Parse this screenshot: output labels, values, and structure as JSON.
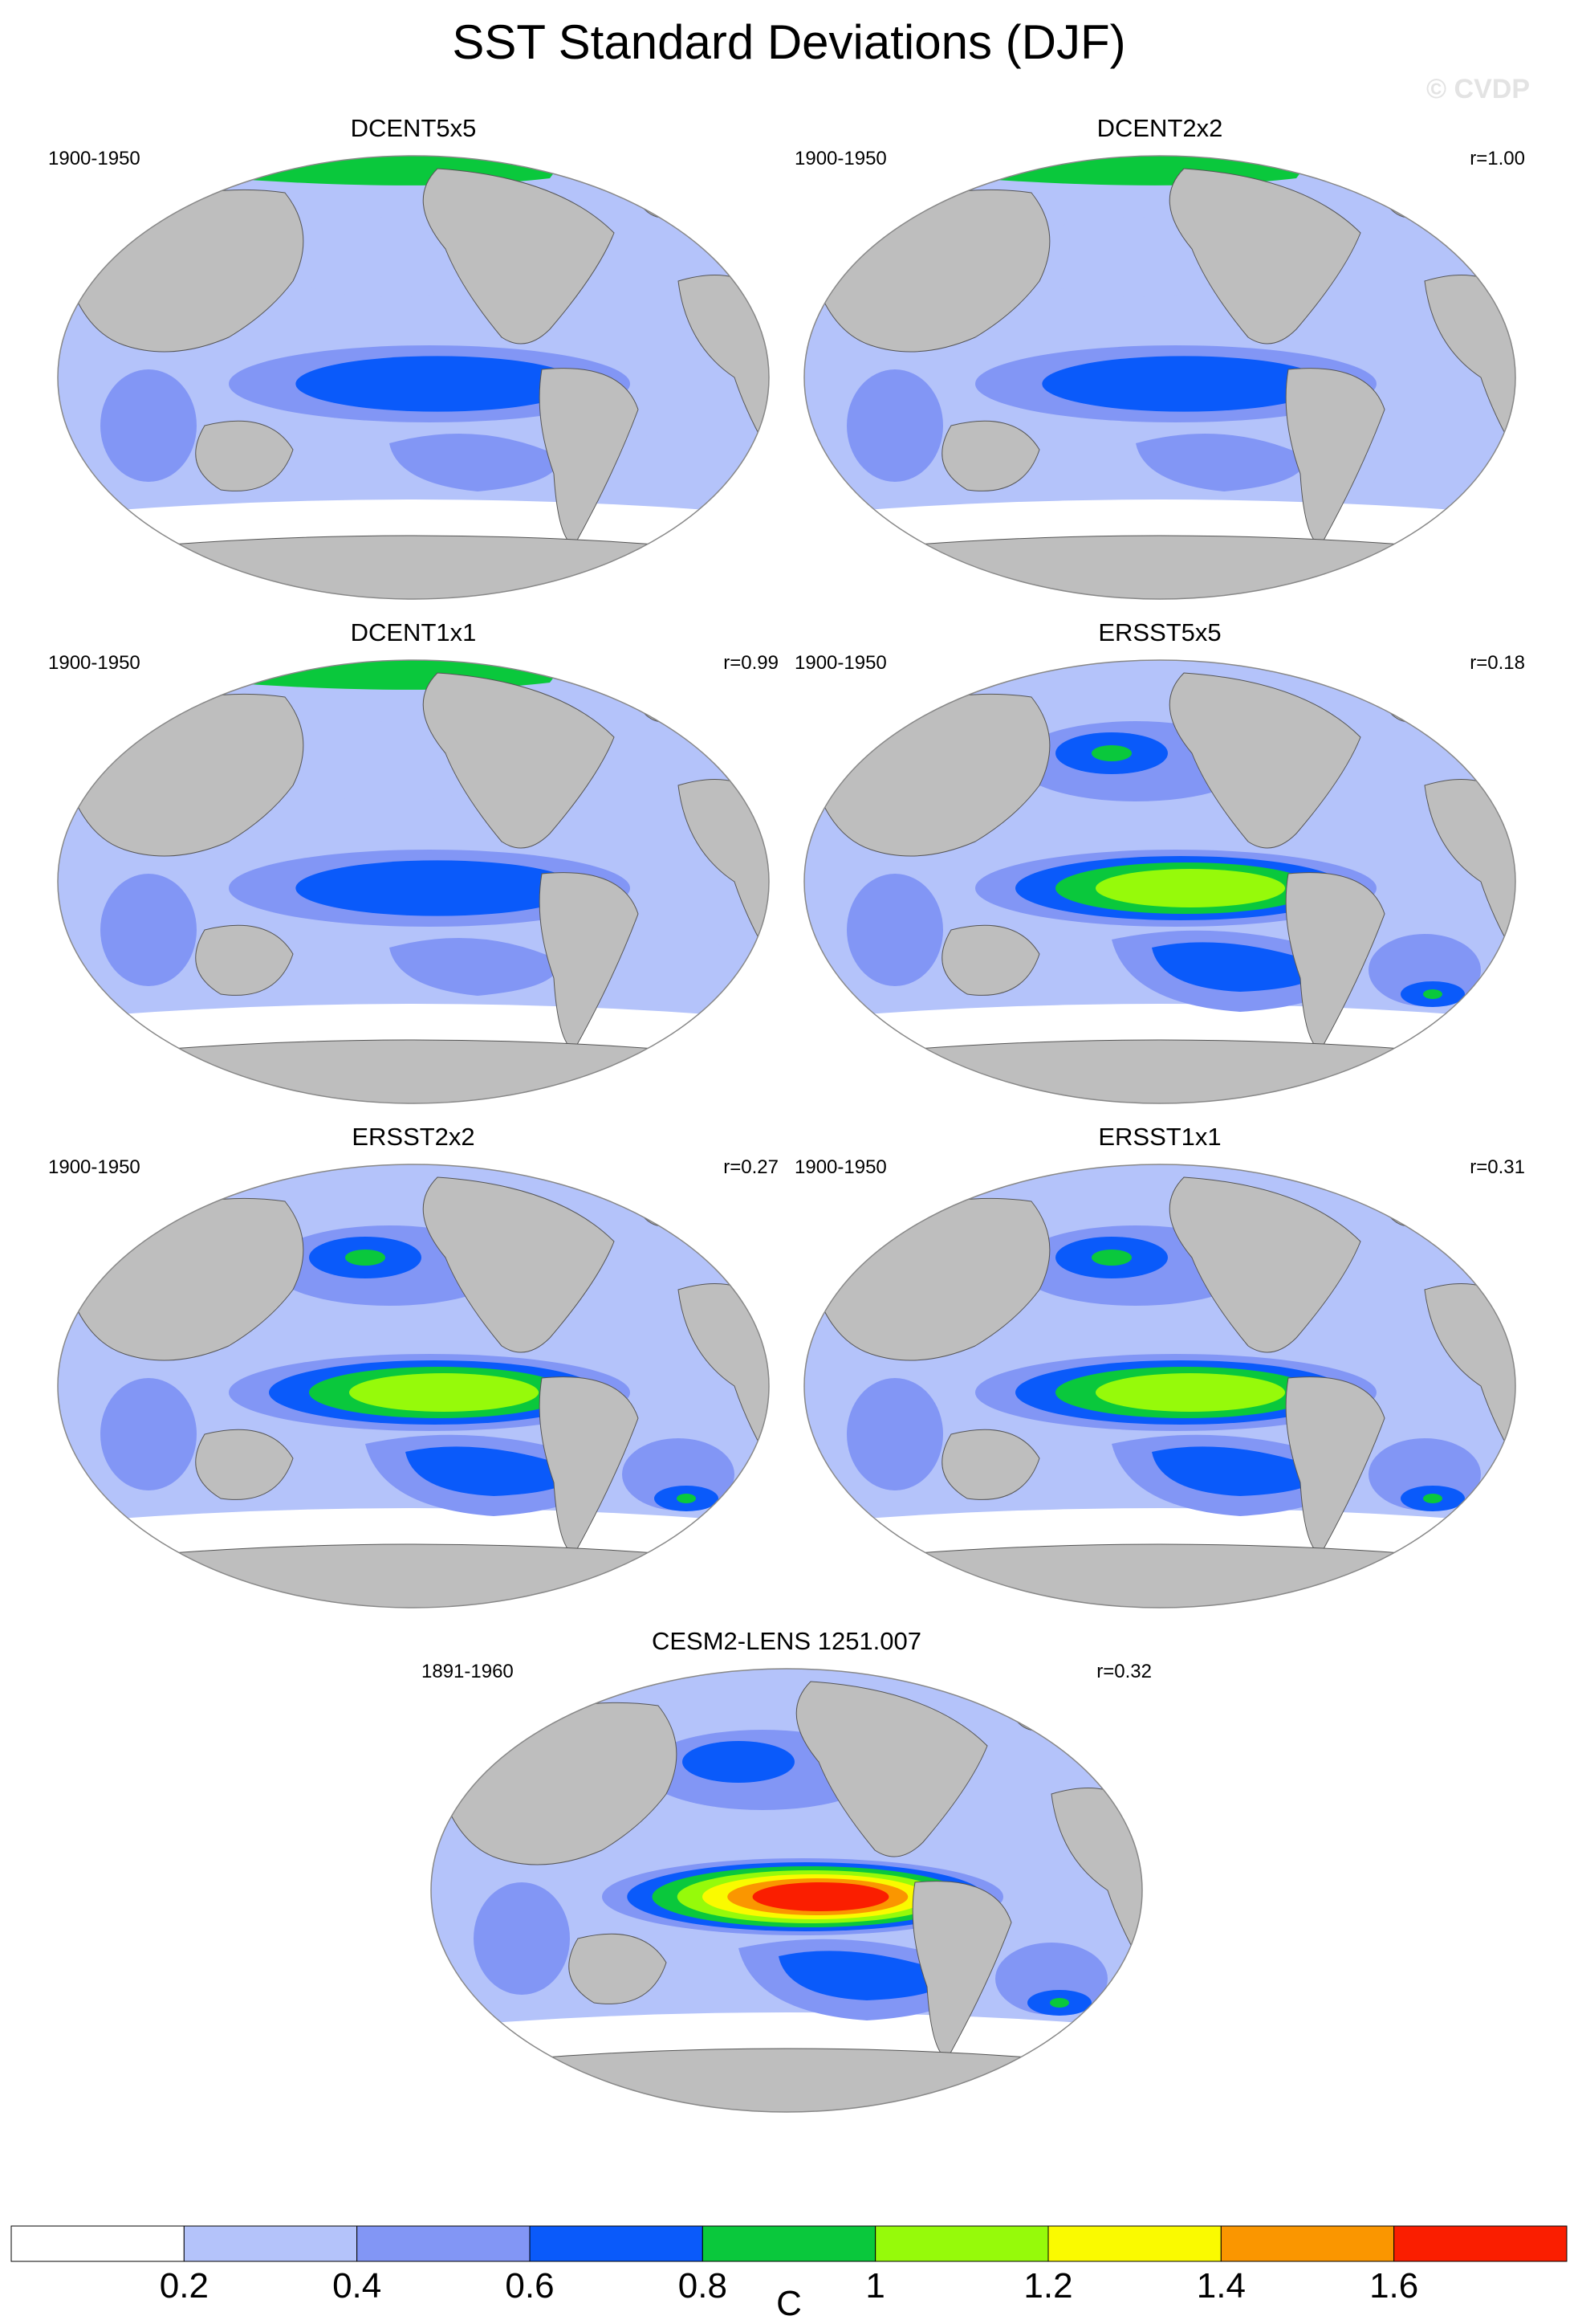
{
  "title": "SST Standard Deviations (DJF)",
  "watermark": "© CVDP",
  "chart_data": {
    "type": "heatmap",
    "title": "SST Standard Deviations (DJF)",
    "units": "C",
    "colorbar": {
      "levels": [
        0.2,
        0.4,
        0.6,
        0.8,
        1,
        1.2,
        1.4,
        1.6
      ],
      "tick_labels": [
        "0.2",
        "0.4",
        "0.6",
        "0.8",
        "1",
        "1.2",
        "1.4",
        "1.6"
      ],
      "colors": [
        "#ffffff",
        "#b4c3fa",
        "#8296f5",
        "#0a5afa",
        "#0ac83c",
        "#96fa0a",
        "#fafa00",
        "#fa9600",
        "#fa1e00"
      ]
    },
    "land_color": "#bebebe",
    "panels": [
      {
        "name": "DCENT5x5",
        "period": "1900-1950",
        "r": "",
        "tropical_pacific_max": 0.8,
        "eastern_pacific_level": 3,
        "arctic_level": 4,
        "south_ocean_level": 2,
        "nopac_level": 1,
        "sh_blobs": 0
      },
      {
        "name": "DCENT2x2",
        "period": "1900-1950",
        "r": "r=1.00",
        "tropical_pacific_max": 0.8,
        "eastern_pacific_level": 3,
        "arctic_level": 4,
        "south_ocean_level": 2,
        "nopac_level": 1,
        "sh_blobs": 0
      },
      {
        "name": "DCENT1x1",
        "period": "1900-1950",
        "r": "r=0.99",
        "tropical_pacific_max": 0.8,
        "eastern_pacific_level": 3,
        "arctic_level": 4,
        "south_ocean_level": 2,
        "nopac_level": 1,
        "sh_blobs": 0
      },
      {
        "name": "ERSST5x5",
        "period": "1900-1950",
        "r": "r=0.18",
        "tropical_pacific_max": 1.2,
        "eastern_pacific_level": 5,
        "arctic_level": 0,
        "south_ocean_level": 3,
        "nopac_level": 4,
        "sh_blobs": 1
      },
      {
        "name": "ERSST2x2",
        "period": "1900-1950",
        "r": "r=0.27",
        "tropical_pacific_max": 1.2,
        "eastern_pacific_level": 5,
        "arctic_level": 0,
        "south_ocean_level": 3,
        "nopac_level": 4,
        "sh_blobs": 1
      },
      {
        "name": "ERSST1x1",
        "period": "1900-1950",
        "r": "r=0.31",
        "tropical_pacific_max": 1.2,
        "eastern_pacific_level": 5,
        "arctic_level": 0,
        "south_ocean_level": 3,
        "nopac_level": 4,
        "sh_blobs": 1
      },
      {
        "name": "CESM2-LENS 1251.007",
        "period": "1891-1960",
        "r": "r=0.32",
        "tropical_pacific_max": 1.8,
        "eastern_pacific_level": 8,
        "arctic_level": 0,
        "south_ocean_level": 3,
        "nopac_level": 3,
        "sh_blobs": 1
      }
    ]
  }
}
